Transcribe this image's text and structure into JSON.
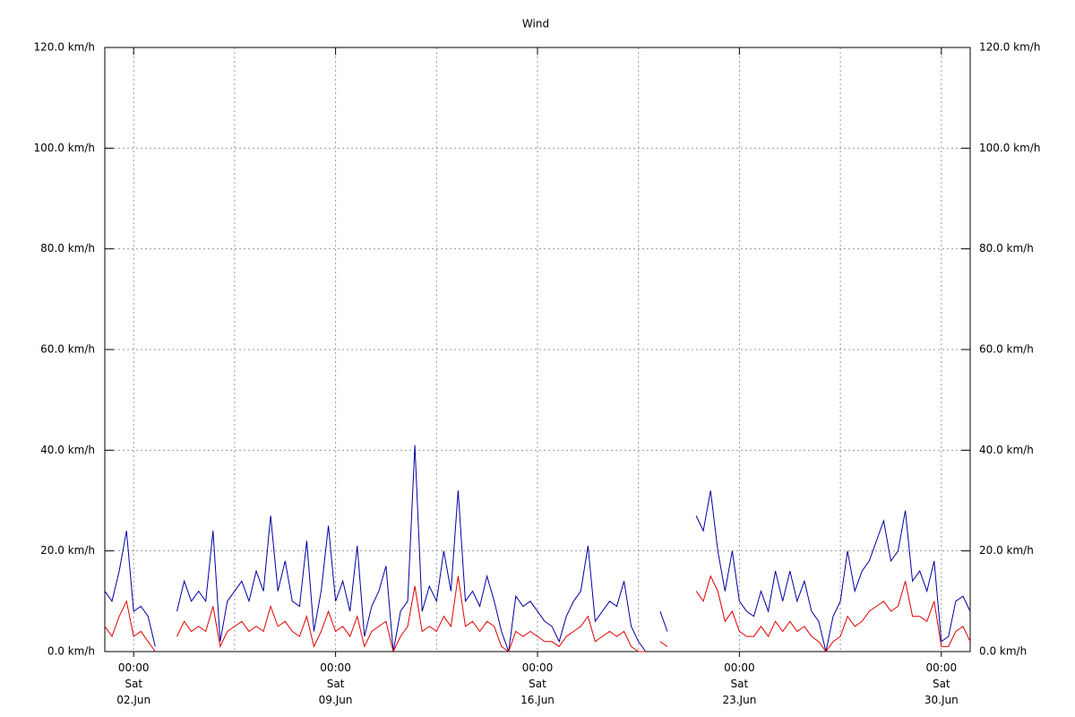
{
  "chart_data": {
    "type": "line",
    "title": "Wind",
    "x": [
      1,
      1.25,
      1.5,
      1.75,
      2,
      2.25,
      2.5,
      2.75,
      3,
      3.25,
      3.5,
      3.75,
      4,
      4.25,
      4.5,
      4.75,
      5,
      5.25,
      5.5,
      5.75,
      6,
      6.25,
      6.5,
      6.75,
      7,
      7.25,
      7.5,
      7.75,
      8,
      8.25,
      8.5,
      8.75,
      9,
      9.25,
      9.5,
      9.75,
      10,
      10.25,
      10.5,
      10.75,
      11,
      11.25,
      11.5,
      11.75,
      12,
      12.25,
      12.5,
      12.75,
      13,
      13.25,
      13.5,
      13.75,
      14,
      14.25,
      14.5,
      14.75,
      15,
      15.25,
      15.5,
      15.75,
      16,
      16.25,
      16.5,
      16.75,
      17,
      17.25,
      17.5,
      17.75,
      18,
      18.25,
      18.5,
      18.75,
      19,
      19.25,
      19.5,
      19.75,
      20,
      20.25,
      20.5,
      20.75,
      21,
      21.25,
      21.5,
      21.75,
      22,
      22.25,
      22.5,
      22.75,
      23,
      23.25,
      23.5,
      23.75,
      24,
      24.25,
      24.5,
      24.75,
      25,
      25.25,
      25.5,
      25.75,
      26,
      26.25,
      26.5,
      26.75,
      27,
      27.25,
      27.5,
      27.75,
      28,
      28.25,
      28.5,
      28.75,
      29,
      29.25,
      29.5,
      29.75,
      30,
      30.25,
      30.5,
      30.75,
      31
    ],
    "series": [
      {
        "color": "#0000a0",
        "values": [
          12,
          10,
          16,
          24,
          8,
          9,
          7,
          1,
          null,
          null,
          8,
          14,
          10,
          12,
          10,
          24,
          2,
          10,
          12,
          14,
          10,
          16,
          12,
          27,
          12,
          18,
          10,
          9,
          22,
          4,
          12,
          25,
          10,
          14,
          8,
          21,
          3,
          9,
          12,
          17,
          0,
          8,
          10,
          41,
          8,
          13,
          10,
          20,
          12,
          32,
          10,
          12,
          9,
          15,
          10,
          4,
          0,
          11,
          9,
          10,
          8,
          6,
          5,
          2,
          7,
          10,
          12,
          21,
          6,
          8,
          10,
          9,
          14,
          5,
          2,
          0,
          null,
          8,
          4,
          null,
          null,
          null,
          27,
          24,
          32,
          20,
          12,
          20,
          10,
          8,
          7,
          12,
          8,
          16,
          10,
          16,
          10,
          14,
          8,
          6,
          0,
          7,
          10,
          20,
          12,
          16,
          18,
          22,
          26,
          18,
          20,
          28,
          14,
          16,
          12,
          18,
          2,
          3,
          10,
          11,
          8
        ]
      },
      {
        "color": "#e00000",
        "values": [
          5,
          3,
          7,
          10,
          3,
          4,
          2,
          0,
          null,
          null,
          3,
          6,
          4,
          5,
          4,
          9,
          1,
          4,
          5,
          6,
          4,
          5,
          4,
          9,
          5,
          6,
          4,
          3,
          7,
          1,
          4,
          8,
          4,
          5,
          3,
          7,
          1,
          4,
          5,
          6,
          0,
          3,
          5,
          13,
          4,
          5,
          4,
          7,
          5,
          15,
          5,
          6,
          4,
          6,
          5,
          1,
          0,
          4,
          3,
          4,
          3,
          2,
          2,
          1,
          3,
          4,
          5,
          7,
          2,
          3,
          4,
          3,
          4,
          1,
          0,
          0,
          null,
          2,
          1,
          null,
          null,
          null,
          12,
          10,
          15,
          12,
          6,
          8,
          4,
          3,
          3,
          5,
          3,
          6,
          4,
          6,
          4,
          5,
          3,
          2,
          0,
          2,
          3,
          7,
          5,
          6,
          8,
          9,
          10,
          8,
          9,
          14,
          7,
          7,
          6,
          10,
          1,
          1,
          4,
          5,
          2
        ]
      }
    ],
    "xlim": [
      1,
      31
    ],
    "xticks": [
      {
        "value": 2,
        "label": "00:00\nSat\n02.Jun"
      },
      {
        "value": 9,
        "label": "00:00\nSat\n09.Jun"
      },
      {
        "value": 16,
        "label": "00:00\nSat\n16.Jun"
      },
      {
        "value": 23,
        "label": "00:00\nSat\n23.Jun"
      },
      {
        "value": 30,
        "label": "00:00\nSat\n30.Jun"
      }
    ],
    "xgrid_minor": [
      5.5,
      12.5,
      19.5,
      26.5
    ],
    "ylim": [
      0,
      120
    ],
    "yticks": [
      {
        "value": 0,
        "label": "0.0 km/h"
      },
      {
        "value": 20,
        "label": "20.0 km/h"
      },
      {
        "value": 40,
        "label": "40.0 km/h"
      },
      {
        "value": 60,
        "label": "60.0 km/h"
      },
      {
        "value": 80,
        "label": "80.0 km/h"
      },
      {
        "value": 100,
        "label": "100.0 km/h"
      },
      {
        "value": 120,
        "label": "120.0 km/h"
      }
    ],
    "grid": true,
    "right_axis": true
  }
}
